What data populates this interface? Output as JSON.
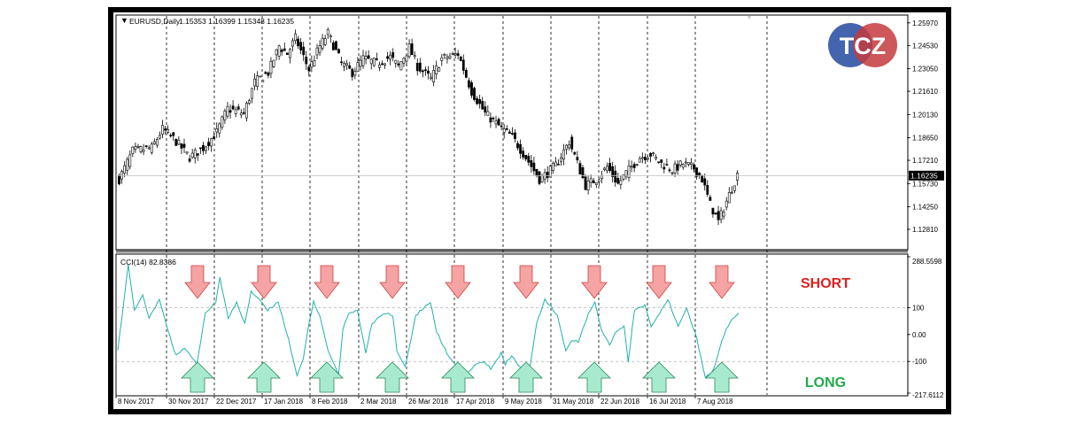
{
  "window": {
    "symbol_label": "EURUSD,Daily",
    "ohlc_label": "1.15353 1.16399 1.15348 1.16235",
    "indicator_label": "CCI(14) 82.8386"
  },
  "logo": {
    "text": "TCZ"
  },
  "signals": {
    "short_label": "SHORT",
    "long_label": "LONG",
    "short_color": "#e02020",
    "long_color": "#22a84a",
    "short_arrow_color": "#f5a3a3",
    "long_arrow_color": "#a8ead0"
  },
  "chart_data": [
    {
      "type": "candlestick",
      "title": "EURUSD,Daily",
      "ylim": [
        1.1185,
        1.263
      ],
      "y_ticks": [
        "1.25970",
        "1.24530",
        "1.23050",
        "1.21610",
        "1.20130",
        "1.18650",
        "1.17210",
        "1.15730",
        "1.14250",
        "1.12810"
      ],
      "current_price": "1.16235",
      "x_tick_labels": [
        "8 Nov 2017",
        "30 Nov 2017",
        "22 Dec 2017",
        "17 Jan 2018",
        "8 Feb 2018",
        "2 Mar 2018",
        "26 Mar 2018",
        "17 Apr 2018",
        "9 May 2018",
        "31 May 2018",
        "22 Jun 2018",
        "16 Jul 2018",
        "7 Aug 2018"
      ],
      "grid": true,
      "close_anchors": [
        [
          0,
          1.16
        ],
        [
          5,
          1.178
        ],
        [
          12,
          1.18
        ],
        [
          16,
          1.192
        ],
        [
          20,
          1.186
        ],
        [
          26,
          1.174
        ],
        [
          31,
          1.18
        ],
        [
          36,
          1.19
        ],
        [
          40,
          1.205
        ],
        [
          46,
          1.202
        ],
        [
          50,
          1.222
        ],
        [
          55,
          1.228
        ],
        [
          59,
          1.245
        ],
        [
          62,
          1.24
        ],
        [
          65,
          1.25
        ],
        [
          70,
          1.23
        ],
        [
          74,
          1.245
        ],
        [
          77,
          1.253
        ],
        [
          82,
          1.234
        ],
        [
          86,
          1.228
        ],
        [
          90,
          1.237
        ],
        [
          95,
          1.234
        ],
        [
          100,
          1.238
        ],
        [
          103,
          1.232
        ],
        [
          107,
          1.244
        ],
        [
          110,
          1.232
        ],
        [
          115,
          1.224
        ],
        [
          119,
          1.237
        ],
        [
          125,
          1.24
        ],
        [
          130,
          1.216
        ],
        [
          135,
          1.202
        ],
        [
          140,
          1.194
        ],
        [
          145,
          1.187
        ],
        [
          150,
          1.174
        ],
        [
          155,
          1.16
        ],
        [
          158,
          1.164
        ],
        [
          161,
          1.169
        ],
        [
          166,
          1.184
        ],
        [
          168,
          1.175
        ],
        [
          172,
          1.156
        ],
        [
          176,
          1.16
        ],
        [
          180,
          1.168
        ],
        [
          184,
          1.157
        ],
        [
          187,
          1.164
        ],
        [
          192,
          1.174
        ],
        [
          196,
          1.176
        ],
        [
          200,
          1.17
        ],
        [
          204,
          1.166
        ],
        [
          208,
          1.17
        ],
        [
          212,
          1.167
        ],
        [
          215,
          1.16
        ],
        [
          218,
          1.144
        ],
        [
          221,
          1.133
        ],
        [
          224,
          1.146
        ],
        [
          228,
          1.163
        ]
      ]
    },
    {
      "type": "line",
      "title": "CCI(14) 82.8386",
      "ylim": [
        -217.6112,
        288.5598
      ],
      "y_ticks": [
        "288.5598",
        "100",
        "0.00",
        "-100",
        "-217.6112"
      ],
      "levels": [
        100,
        -100
      ],
      "series": [
        {
          "anchors": [
            [
              0,
              -60
            ],
            [
              3,
              130
            ],
            [
              5,
              260
            ],
            [
              8,
              90
            ],
            [
              12,
              150
            ],
            [
              15,
              60
            ],
            [
              20,
              130
            ],
            [
              25,
              -10
            ],
            [
              28,
              -80
            ],
            [
              32,
              -50
            ],
            [
              38,
              -110
            ],
            [
              42,
              80
            ],
            [
              47,
              120
            ],
            [
              49,
              210
            ],
            [
              53,
              60
            ],
            [
              57,
              120
            ],
            [
              61,
              40
            ],
            [
              64,
              160
            ],
            [
              68,
              130
            ],
            [
              72,
              90
            ],
            [
              77,
              120
            ],
            [
              82,
              -20
            ],
            [
              86,
              -150
            ],
            [
              89,
              -90
            ],
            [
              92,
              50
            ],
            [
              94,
              120
            ],
            [
              97,
              70
            ],
            [
              101,
              -60
            ],
            [
              106,
              -150
            ],
            [
              108,
              20
            ],
            [
              111,
              80
            ],
            [
              115,
              90
            ],
            [
              119,
              -70
            ],
            [
              122,
              40
            ],
            [
              126,
              70
            ],
            [
              129,
              80
            ],
            [
              132,
              70
            ],
            [
              134,
              -60
            ],
            [
              138,
              -120
            ],
            [
              143,
              70
            ],
            [
              147,
              100
            ],
            [
              150,
              120
            ],
            [
              153,
              10
            ],
            [
              158,
              -70
            ],
            [
              162,
              -110
            ],
            [
              168,
              -140
            ],
            [
              172,
              -110
            ],
            [
              176,
              -100
            ],
            [
              179,
              -130
            ],
            [
              184,
              -70
            ],
            [
              186,
              -110
            ],
            [
              189,
              -80
            ],
            [
              195,
              -140
            ],
            [
              198,
              -110
            ],
            [
              201,
              40
            ],
            [
              205,
              130
            ],
            [
              208,
              100
            ],
            [
              211,
              70
            ],
            [
              215,
              -60
            ],
            [
              218,
              -20
            ],
            [
              221,
              -30
            ],
            [
              226,
              80
            ],
            [
              229,
              120
            ],
            [
              232,
              20
            ],
            [
              236,
              -40
            ],
            [
              239,
              10
            ],
            [
              243,
              30
            ],
            [
              245,
              -100
            ],
            [
              248,
              90
            ],
            [
              253,
              110
            ],
            [
              256,
              30
            ],
            [
              260,
              80
            ],
            [
              264,
              130
            ],
            [
              269,
              30
            ],
            [
              273,
              100
            ],
            [
              278,
              -20
            ],
            [
              282,
              -160
            ],
            [
              286,
              -130
            ],
            [
              290,
              -20
            ],
            [
              294,
              50
            ],
            [
              298,
              82
            ]
          ]
        }
      ]
    }
  ]
}
